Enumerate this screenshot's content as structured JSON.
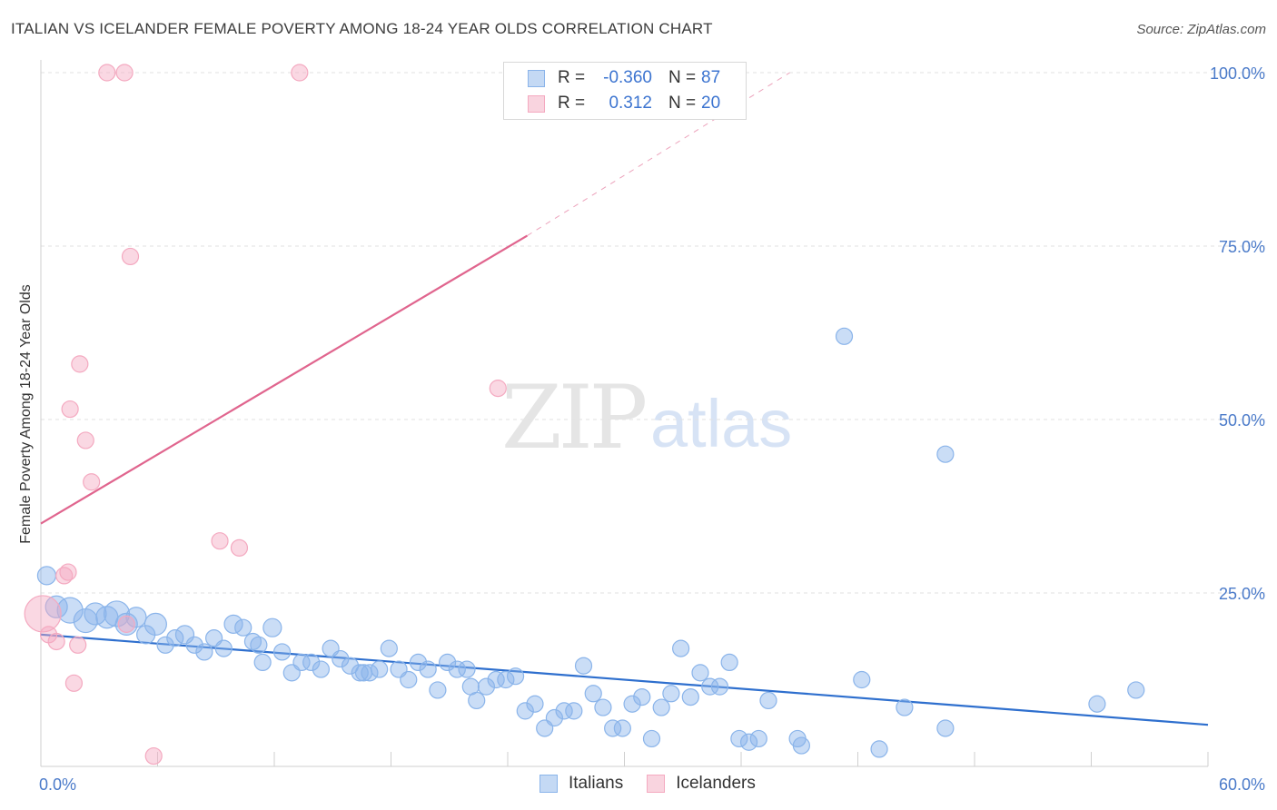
{
  "title": "ITALIAN VS ICELANDER FEMALE POVERTY AMONG 18-24 YEAR OLDS CORRELATION CHART",
  "source": "Source: ZipAtlas.com",
  "watermark": {
    "zip": "ZIP",
    "atlas": "atlas"
  },
  "legend": {
    "rows": [
      {
        "r_label": "R =",
        "r_value": "-0.360",
        "n_label": "N =",
        "n_value": "87",
        "color": "#8ab4ea"
      },
      {
        "r_label": "R =",
        "r_value": "0.312",
        "n_label": "N =",
        "n_value": "20",
        "color": "#f4a9c0"
      }
    ],
    "bottom": [
      {
        "label": "Italians",
        "color": "#8ab4ea"
      },
      {
        "label": "Icelanders",
        "color": "#f4a9c0"
      }
    ]
  },
  "chart_data": {
    "type": "scatter",
    "ylabel": "Female Poverty Among 18-24 Year Olds",
    "xlabel": "",
    "xlim": [
      0,
      60
    ],
    "ylim": [
      0,
      100
    ],
    "x_tick_labels": [
      {
        "value": 0,
        "label": "0.0%"
      },
      {
        "value": 60,
        "label": "60.0%"
      }
    ],
    "y_tick_labels": [
      {
        "value": 25,
        "label": "25.0%"
      },
      {
        "value": 50,
        "label": "50.0%"
      },
      {
        "value": 75,
        "label": "75.0%"
      },
      {
        "value": 100,
        "label": "100.0%"
      }
    ],
    "grid": true,
    "series": [
      {
        "name": "Italians",
        "color": "#8ab4ea",
        "trend": {
          "x0": 0,
          "y0": 19,
          "x1": 60,
          "y1": 6,
          "color": "#2e6fce"
        },
        "points": [
          [
            0.3,
            27.5,
            10
          ],
          [
            0.8,
            23,
            12
          ],
          [
            1.5,
            22.5,
            14
          ],
          [
            2.3,
            21,
            13
          ],
          [
            2.8,
            22,
            12
          ],
          [
            3.4,
            21.5,
            12
          ],
          [
            3.9,
            22,
            14
          ],
          [
            4.4,
            20.5,
            12
          ],
          [
            4.9,
            21.5,
            11
          ],
          [
            5.4,
            19,
            10
          ],
          [
            5.9,
            20.5,
            12
          ],
          [
            6.4,
            17.5,
            9
          ],
          [
            6.9,
            18.5,
            9
          ],
          [
            7.4,
            19,
            10
          ],
          [
            7.9,
            17.5,
            9
          ],
          [
            8.4,
            16.5,
            9
          ],
          [
            8.9,
            18.5,
            9
          ],
          [
            9.4,
            17,
            9
          ],
          [
            9.9,
            20.5,
            10
          ],
          [
            10.4,
            20,
            9
          ],
          [
            10.9,
            18,
            9
          ],
          [
            11.4,
            15,
            9
          ],
          [
            11.9,
            20,
            10
          ],
          [
            12.4,
            16.5,
            9
          ],
          [
            12.9,
            13.5,
            9
          ],
          [
            13.4,
            15,
            9
          ],
          [
            13.9,
            15,
            9
          ],
          [
            14.4,
            14,
            9
          ],
          [
            14.9,
            17,
            9
          ],
          [
            15.4,
            15.5,
            9
          ],
          [
            15.9,
            14.5,
            9
          ],
          [
            16.4,
            13.5,
            9
          ],
          [
            16.9,
            13.5,
            9
          ],
          [
            17.4,
            14,
            9
          ],
          [
            17.9,
            17,
            9
          ],
          [
            18.4,
            14,
            9
          ],
          [
            18.9,
            12.5,
            9
          ],
          [
            19.4,
            15,
            9
          ],
          [
            19.9,
            14,
            9
          ],
          [
            20.4,
            11,
            9
          ],
          [
            20.9,
            15,
            9
          ],
          [
            21.4,
            14,
            9
          ],
          [
            21.9,
            14,
            9
          ],
          [
            22.4,
            9.5,
            9
          ],
          [
            22.9,
            11.5,
            9
          ],
          [
            23.4,
            12.5,
            9
          ],
          [
            23.9,
            12.5,
            9
          ],
          [
            24.4,
            13,
            9
          ],
          [
            24.9,
            8,
            9
          ],
          [
            25.4,
            9,
            9
          ],
          [
            25.9,
            5.5,
            9
          ],
          [
            26.4,
            7,
            9
          ],
          [
            26.9,
            8,
            9
          ],
          [
            27.4,
            8,
            9
          ],
          [
            27.9,
            14.5,
            9
          ],
          [
            28.4,
            10.5,
            9
          ],
          [
            28.9,
            8.5,
            9
          ],
          [
            29.4,
            5.5,
            9
          ],
          [
            29.9,
            5.5,
            9
          ],
          [
            30.4,
            9,
            9
          ],
          [
            30.9,
            10,
            9
          ],
          [
            31.4,
            4,
            9
          ],
          [
            31.9,
            8.5,
            9
          ],
          [
            32.4,
            10.5,
            9
          ],
          [
            32.9,
            17,
            9
          ],
          [
            33.4,
            10,
            9
          ],
          [
            33.9,
            13.5,
            9
          ],
          [
            34.4,
            11.5,
            9
          ],
          [
            34.9,
            11.5,
            9
          ],
          [
            35.4,
            15,
            9
          ],
          [
            35.9,
            4,
            9
          ],
          [
            36.4,
            3.5,
            9
          ],
          [
            36.9,
            4,
            9
          ],
          [
            37.4,
            9.5,
            9
          ],
          [
            38.9,
            4,
            9
          ],
          [
            39.1,
            3,
            9
          ],
          [
            41.3,
            62,
            9
          ],
          [
            42.2,
            12.5,
            9
          ],
          [
            43.1,
            2.5,
            9
          ],
          [
            44.4,
            8.5,
            9
          ],
          [
            46.5,
            5.5,
            9
          ],
          [
            46.5,
            45,
            9
          ],
          [
            54.3,
            9,
            9
          ],
          [
            56.3,
            11,
            9
          ],
          [
            22.1,
            11.5,
            9
          ],
          [
            16.6,
            13.5,
            9
          ],
          [
            11.2,
            17.5,
            9
          ]
        ]
      },
      {
        "name": "Icelanders",
        "color": "#f4a9c0",
        "trend": {
          "x0": 0,
          "y0": 35,
          "x1": 25,
          "y1": 76.5,
          "dash_x1": 38.5,
          "dash_y1": 100,
          "color": "#e0658e"
        },
        "points": [
          [
            0.1,
            22,
            20
          ],
          [
            0.4,
            19,
            9
          ],
          [
            0.8,
            18,
            9
          ],
          [
            1.2,
            27.5,
            9
          ],
          [
            1.4,
            28,
            9
          ],
          [
            1.5,
            51.5,
            9
          ],
          [
            1.7,
            12,
            9
          ],
          [
            1.9,
            17.5,
            9
          ],
          [
            2.0,
            58,
            9
          ],
          [
            2.3,
            47,
            9
          ],
          [
            2.6,
            41,
            9
          ],
          [
            3.4,
            100,
            9
          ],
          [
            4.3,
            100,
            9
          ],
          [
            4.4,
            20.5,
            9
          ],
          [
            4.6,
            73.5,
            9
          ],
          [
            5.8,
            1.5,
            9
          ],
          [
            9.2,
            32.5,
            9
          ],
          [
            10.2,
            31.5,
            9
          ],
          [
            13.3,
            100,
            9
          ],
          [
            23.5,
            54.5,
            9
          ]
        ]
      }
    ]
  }
}
